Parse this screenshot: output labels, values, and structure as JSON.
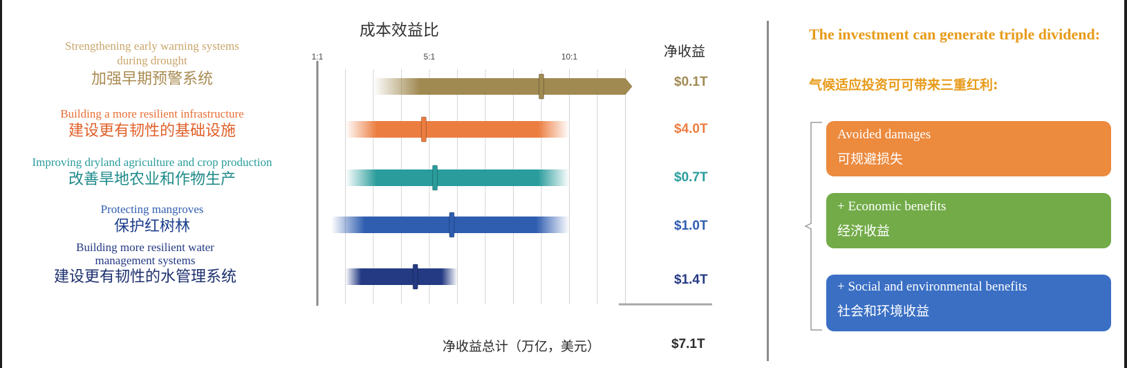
{
  "chart_data": {
    "type": "bar",
    "title": "成本效益比",
    "x_ticks": [
      "1:1",
      "5:1",
      "10:1"
    ],
    "xlim": [
      1,
      12
    ],
    "net_header": "净收益",
    "categories": [
      {
        "en": "Strengthening early warning systems during drought",
        "zh": "加强早期预警系统",
        "range": [
          3,
          12
        ],
        "ratio": 9.0,
        "extends_beyond": true,
        "net": "$0.1T",
        "color": "#a08a52"
      },
      {
        "en": "Building a more resilient infrastructure",
        "zh": "建设更有韧性的基础设施",
        "range": [
          2,
          10
        ],
        "ratio": 4.8,
        "extends_beyond": false,
        "net": "$4.0T",
        "color": "#ec7d40"
      },
      {
        "en": "Improving dryland agriculture and crop production",
        "zh": "改善旱地农业和作物生产",
        "range": [
          2,
          10
        ],
        "ratio": 5.2,
        "extends_beyond": false,
        "net": "$0.7T",
        "color": "#2a9c9c"
      },
      {
        "en": "Protecting mangroves",
        "zh": "保护红树林",
        "range": [
          1.5,
          10
        ],
        "ratio": 5.8,
        "extends_beyond": false,
        "net": "$1.0T",
        "color": "#2f5db0"
      },
      {
        "en": "Building more resilient water management systems",
        "zh": "建设更有韧性的水管理系统",
        "range": [
          2,
          6
        ],
        "ratio": 4.5,
        "extends_beyond": false,
        "net": "$1.4T",
        "color": "#243a83"
      }
    ],
    "total_label": "净收益总计（万亿，美元）",
    "total_value": "$7.1T"
  },
  "right_panel": {
    "title_en": "The investment can generate triple dividend:",
    "title_zh": "气候适应投资可可带来三重红利:",
    "boxes": [
      {
        "en": "Avoided damages",
        "zh": "可规避损失",
        "color": "#ec8a3e"
      },
      {
        "en": "+ Economic benefits",
        "zh": "经济收益",
        "color": "#72ab48"
      },
      {
        "en": "+ Social and environmental benefits",
        "zh": "社会和环境收益",
        "color": "#3a6fc4"
      }
    ]
  }
}
